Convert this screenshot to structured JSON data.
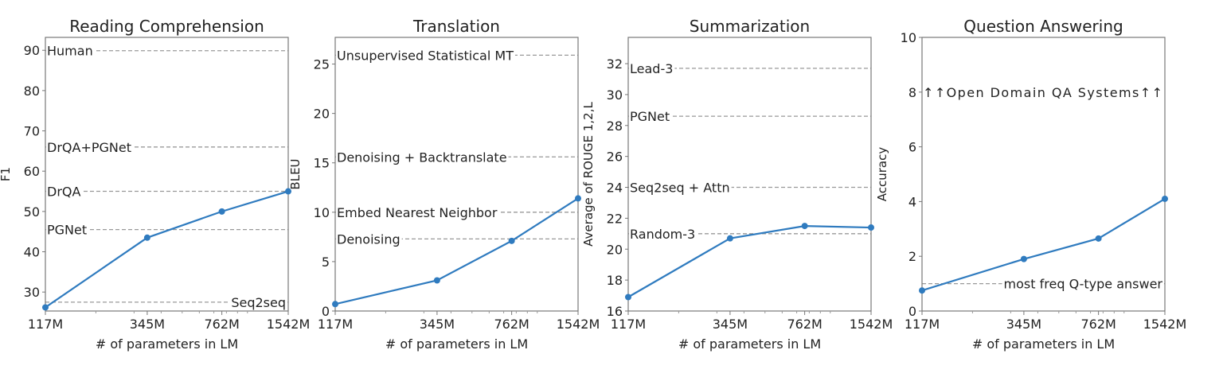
{
  "chart_data": [
    {
      "type": "line",
      "title": "Reading Comprehension",
      "xlabel": "# of parameters in LM",
      "ylabel": "F1",
      "x_scale": "log",
      "x": [
        117,
        345,
        762,
        1542
      ],
      "x_tick_labels": [
        "117M",
        "345M",
        "762M",
        "1542M"
      ],
      "values": [
        26.2,
        43.5,
        50.0,
        55.0
      ],
      "ylim": [
        25.3,
        93.2
      ],
      "y_ticks": [
        30,
        40,
        50,
        60,
        70,
        80,
        90
      ],
      "grid": false,
      "color": "#2f7bbf",
      "baselines": [
        {
          "label": "Human",
          "value": 89.9,
          "label_position": "left"
        },
        {
          "label": "DrQA+PGNet",
          "value": 66.0,
          "label_position": "left"
        },
        {
          "label": "DrQA",
          "value": 55.0,
          "label_position": "left"
        },
        {
          "label": "PGNet",
          "value": 45.5,
          "label_position": "left"
        },
        {
          "label": "Seq2seq",
          "value": 27.5,
          "label_position": "right"
        }
      ]
    },
    {
      "type": "line",
      "title": "Translation",
      "xlabel": "# of parameters in LM",
      "ylabel": "BLEU",
      "x_scale": "log",
      "x": [
        117,
        345,
        762,
        1542
      ],
      "x_tick_labels": [
        "117M",
        "345M",
        "762M",
        "1542M"
      ],
      "values": [
        0.7,
        3.1,
        7.1,
        11.4
      ],
      "ylim": [
        0,
        27.7
      ],
      "y_ticks": [
        0,
        5,
        10,
        15,
        20,
        25
      ],
      "grid": false,
      "color": "#2f7bbf",
      "baselines": [
        {
          "label": "Unsupervised Statistical MT",
          "value": 25.9,
          "label_position": "left"
        },
        {
          "label": "Denoising + Backtranslate",
          "value": 15.6,
          "label_position": "left"
        },
        {
          "label": "Embed Nearest Neighbor",
          "value": 10.0,
          "label_position": "left"
        },
        {
          "label": "Denoising",
          "value": 7.3,
          "label_position": "left"
        }
      ]
    },
    {
      "type": "line",
      "title": "Summarization",
      "xlabel": "# of parameters in LM",
      "ylabel": "Average of ROUGE 1,2,L",
      "x_scale": "log",
      "x": [
        117,
        345,
        762,
        1542
      ],
      "x_tick_labels": [
        "117M",
        "345M",
        "762M",
        "1542M"
      ],
      "values": [
        16.9,
        20.7,
        21.5,
        21.4
      ],
      "ylim": [
        16,
        33.7
      ],
      "y_ticks": [
        16,
        18,
        20,
        22,
        24,
        26,
        28,
        30,
        32
      ],
      "grid": false,
      "color": "#2f7bbf",
      "baselines": [
        {
          "label": "Lead-3",
          "value": 31.7,
          "label_position": "left"
        },
        {
          "label": "PGNet",
          "value": 28.6,
          "label_position": "left"
        },
        {
          "label": "Seq2seq + Attn",
          "value": 24.0,
          "label_position": "left"
        },
        {
          "label": "Random-3",
          "value": 21.0,
          "label_position": "left"
        }
      ]
    },
    {
      "type": "line",
      "title": "Question Answering",
      "xlabel": "# of parameters in LM",
      "ylabel": "Accuracy",
      "x_scale": "log",
      "x": [
        117,
        345,
        762,
        1542
      ],
      "x_tick_labels": [
        "117M",
        "345M",
        "762M",
        "1542M"
      ],
      "values": [
        0.75,
        1.9,
        2.65,
        4.1
      ],
      "ylim": [
        0,
        10
      ],
      "y_ticks": [
        0,
        2,
        4,
        6,
        8,
        10
      ],
      "grid": false,
      "color": "#2f7bbf",
      "baselines": [
        {
          "label": "most freq Q-type answer",
          "value": 1.0,
          "label_position": "right"
        }
      ],
      "annotations": [
        {
          "text": "↑↑Open Domain QA Systems↑↑",
          "value": 8
        }
      ]
    }
  ]
}
